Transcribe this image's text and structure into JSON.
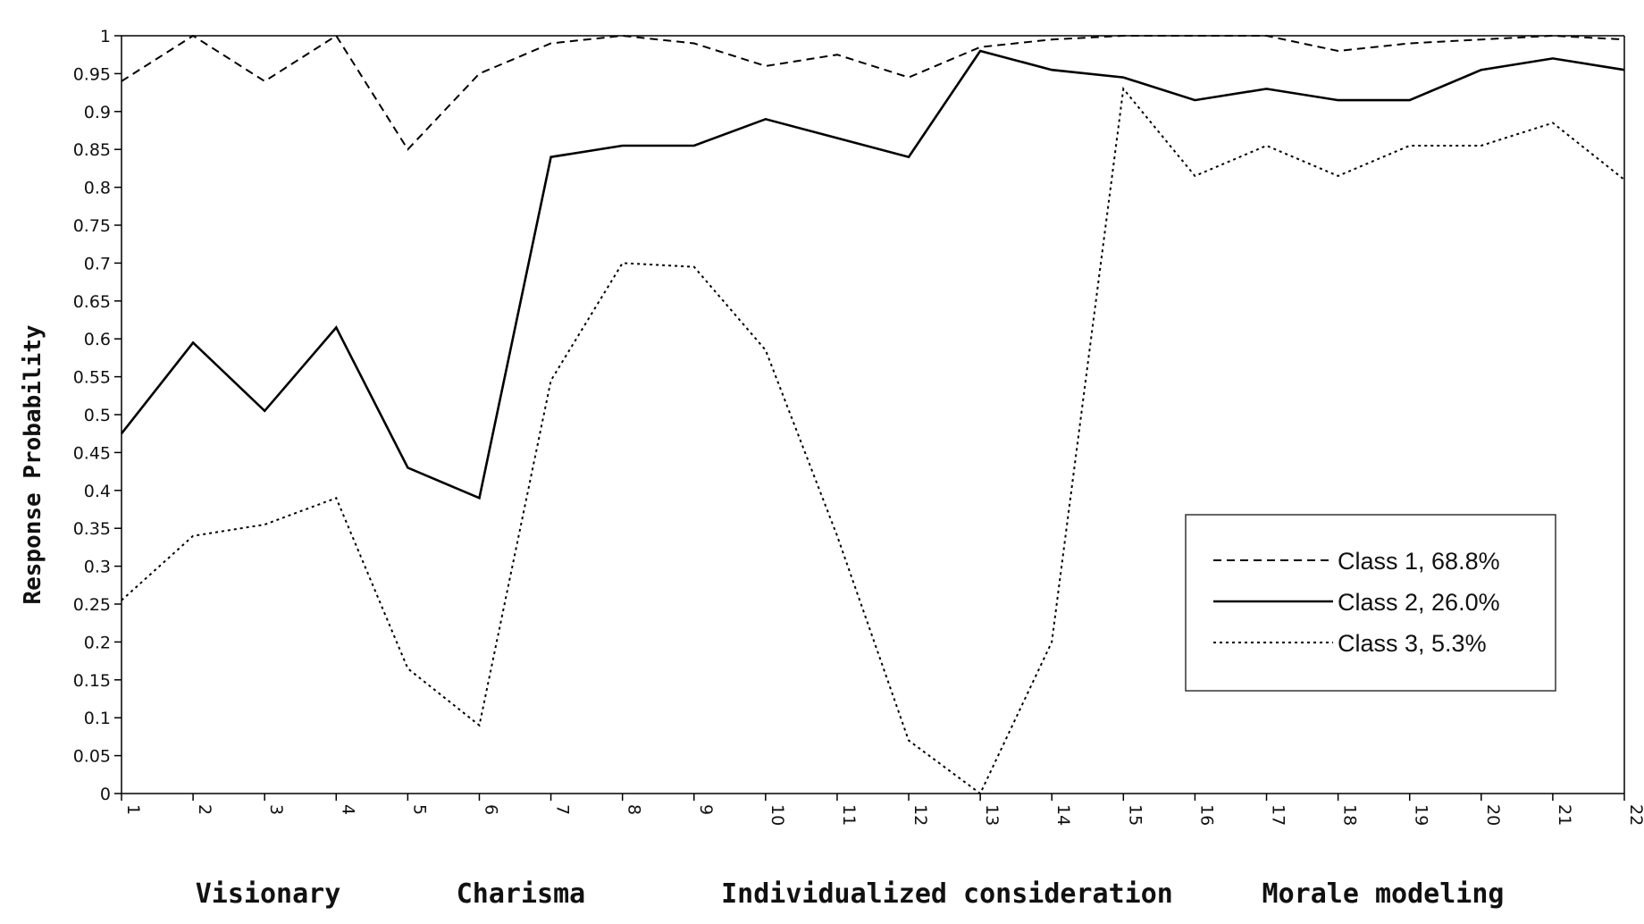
{
  "chart_data": {
    "type": "line",
    "ylabel": "Response Probability",
    "xlabel": "",
    "ylim": [
      0,
      1
    ],
    "y_ticks": [
      "0",
      "0.05",
      "0.1",
      "0.15",
      "0.2",
      "0.25",
      "0.3",
      "0.35",
      "0.4",
      "0.45",
      "0.5",
      "0.55",
      "0.6",
      "0.65",
      "0.7",
      "0.75",
      "0.8",
      "0.85",
      "0.9",
      "0.95",
      "1"
    ],
    "y_tick_values": [
      0,
      0.05,
      0.1,
      0.15,
      0.2,
      0.25,
      0.3,
      0.35,
      0.4,
      0.45,
      0.5,
      0.55,
      0.6,
      0.65,
      0.7,
      0.75,
      0.8,
      0.85,
      0.9,
      0.95,
      1
    ],
    "x": [
      "1",
      "2",
      "3",
      "4",
      "5",
      "6",
      "7",
      "8",
      "9",
      "10",
      "11",
      "12",
      "13",
      "14",
      "15",
      "16",
      "17",
      "18",
      "19",
      "20",
      "21",
      "22"
    ],
    "grid": false,
    "legend_position": "bottom-right",
    "series": [
      {
        "name": "Class 1, 68.8%",
        "style": "dashed",
        "values": [
          0.94,
          1.0,
          0.94,
          1.0,
          0.85,
          0.95,
          0.99,
          1.0,
          0.99,
          0.96,
          0.975,
          0.945,
          0.985,
          0.995,
          1.0,
          1.0,
          1.0,
          0.98,
          0.99,
          0.995,
          1.0,
          0.995
        ]
      },
      {
        "name": "Class 2, 26.0%",
        "style": "solid",
        "values": [
          0.475,
          0.595,
          0.505,
          0.615,
          0.43,
          0.39,
          0.84,
          0.855,
          0.855,
          0.89,
          0.865,
          0.84,
          0.98,
          0.955,
          0.945,
          0.915,
          0.93,
          0.915,
          0.915,
          0.955,
          0.97,
          0.955
        ]
      },
      {
        "name": "Class 3, 5.3%",
        "style": "dotted",
        "values": [
          0.255,
          0.34,
          0.355,
          0.39,
          0.165,
          0.09,
          0.545,
          0.7,
          0.695,
          0.585,
          0.34,
          0.07,
          0.0,
          0.2,
          0.93,
          0.815,
          0.855,
          0.815,
          0.855,
          0.855,
          0.885,
          0.81
        ]
      }
    ],
    "groups": [
      {
        "label": "Visionary",
        "from": 1,
        "to": 4
      },
      {
        "label": "Charisma",
        "from": 5,
        "to": 8
      },
      {
        "label": "Individualized consideration",
        "from": 9,
        "to": 15
      },
      {
        "label": "Morale modeling",
        "from": 16,
        "to": 22
      }
    ]
  }
}
